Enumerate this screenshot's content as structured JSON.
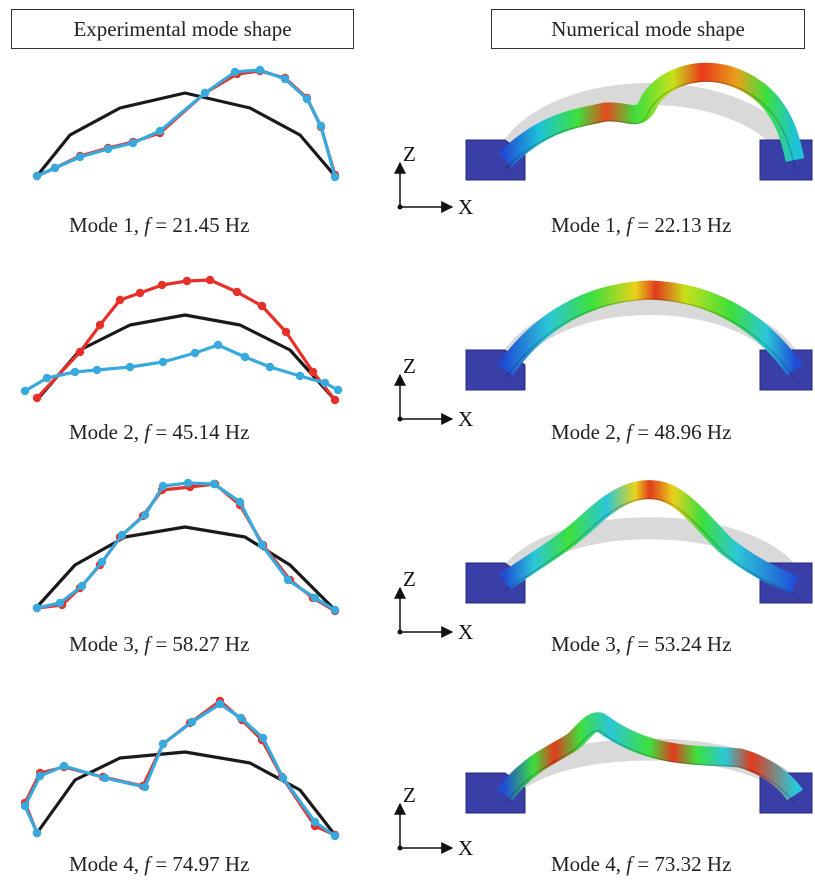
{
  "headers": {
    "experimental": "Experimental  mode shape",
    "numerical": "Numerical  mode shape"
  },
  "axes": {
    "vertical": "Z",
    "horizontal": "X"
  },
  "modes": [
    {
      "exp": {
        "mode": "Mode 1,",
        "f": "f",
        "value": "= 21.45 Hz"
      },
      "num": {
        "mode": "Mode 1,",
        "f": "f",
        "value": "= 22.13 Hz"
      }
    },
    {
      "exp": {
        "mode": "Mode 2,",
        "f": "f",
        "value": "= 45.14 Hz"
      },
      "num": {
        "mode": "Mode 2,",
        "f": "f",
        "value": "= 48.96 Hz"
      }
    },
    {
      "exp": {
        "mode": "Mode 3,",
        "f": "f",
        "value": "= 58.27 Hz"
      },
      "num": {
        "mode": "Mode 3,",
        "f": "f",
        "value": "= 53.24 Hz"
      }
    },
    {
      "exp": {
        "mode": "Mode 4,",
        "f": "f",
        "value": "= 74.97 Hz"
      },
      "num": {
        "mode": "Mode 4,",
        "f": "f",
        "value": "= 73.32 Hz"
      }
    }
  ],
  "colors": {
    "reference": "#1a1a1a",
    "red_series": "#e8302a",
    "blue_series": "#38a9dc",
    "support": "#3a3fa8"
  }
}
